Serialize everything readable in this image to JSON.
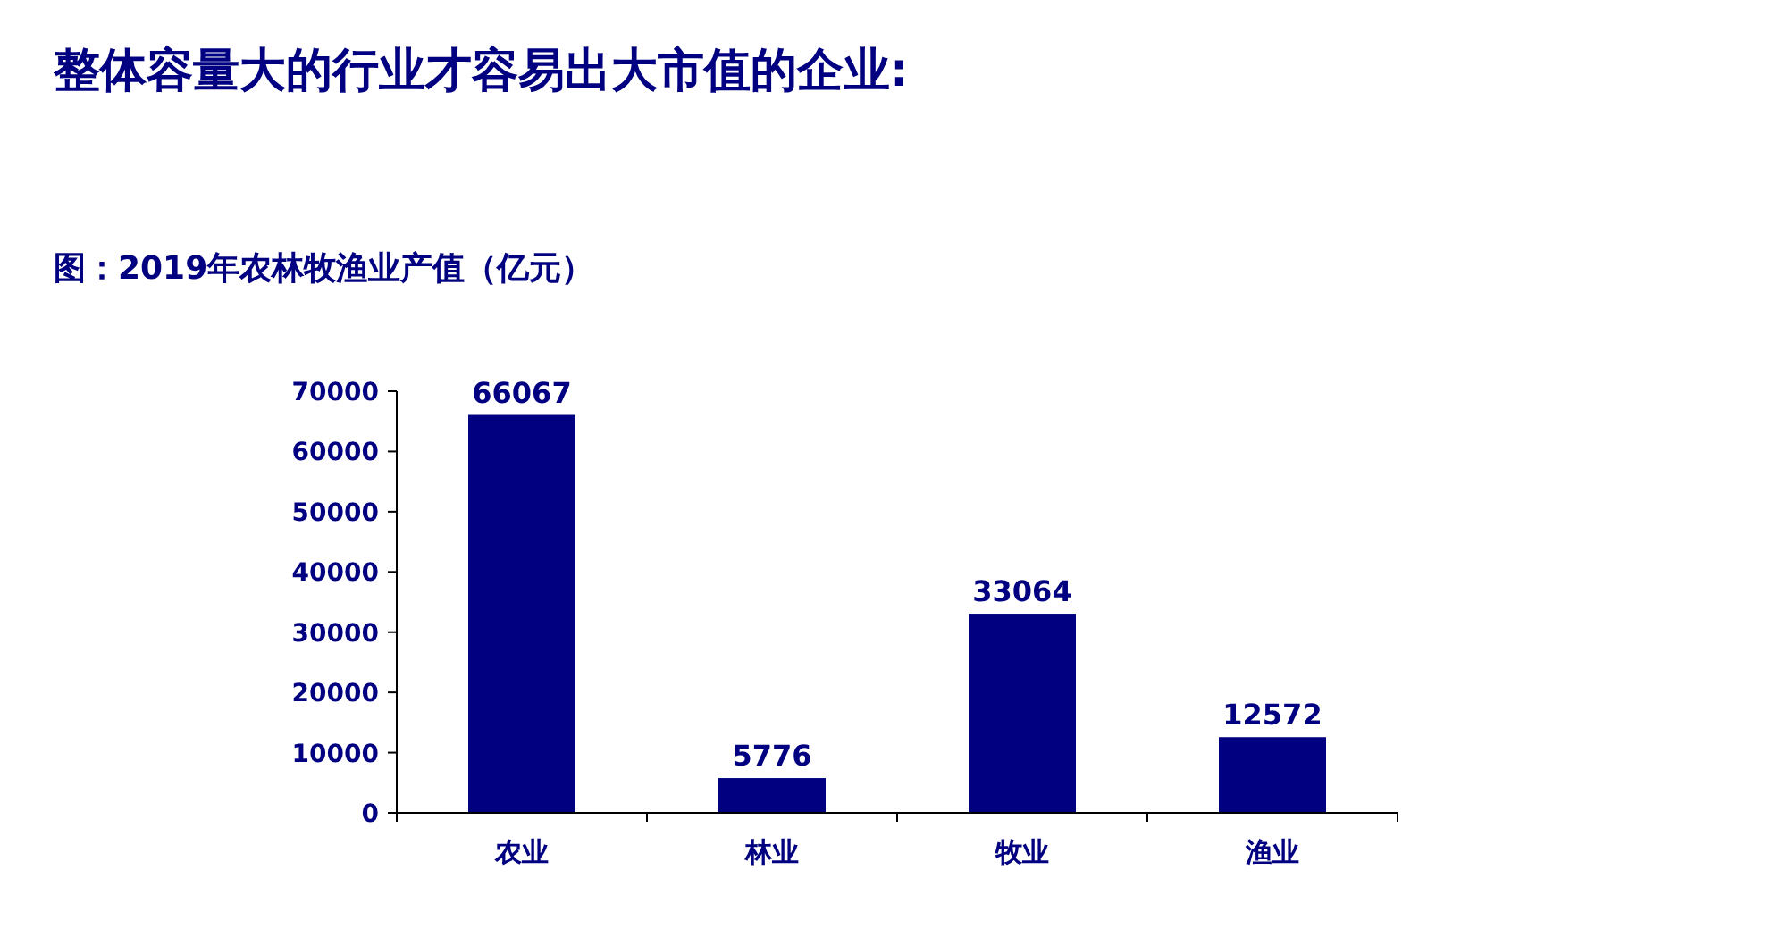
{
  "chart_data": {
    "type": "bar",
    "title": "整体容量大的行业才容易出大市值的企业:",
    "subtitle": "图：2019年农林牧渔业产值（亿元）",
    "categories": [
      "农业",
      "林业",
      "牧业",
      "渔业"
    ],
    "values": [
      66067,
      5776,
      33064,
      12572
    ],
    "color": "#000080",
    "ylim": [
      0,
      70000
    ],
    "yticks": [
      0,
      10000,
      20000,
      30000,
      40000,
      50000,
      60000,
      70000
    ],
    "data_labels": true,
    "grid": false
  }
}
